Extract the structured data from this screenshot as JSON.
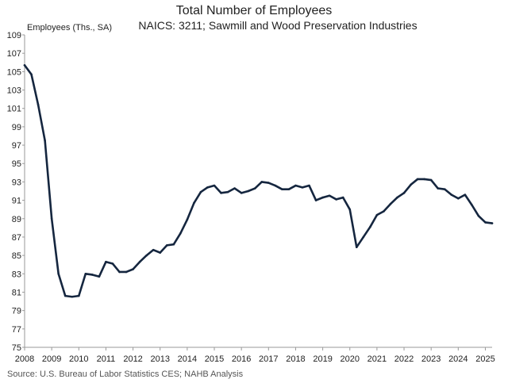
{
  "chart_data": {
    "type": "line",
    "title": "Total Number of Employees",
    "subtitle": "NAICS: 3211; Sawmill and Wood Preservation Industries",
    "ylabel": "Employees (Ths., SA)",
    "xlabel": "",
    "source": "Source: U.S. Bureau of Labor Statistics CES; NAHB Analysis",
    "ylim": [
      75,
      109
    ],
    "xlim": [
      2008,
      2025.25
    ],
    "y_ticks": [
      "75",
      "77",
      "79",
      "81",
      "83",
      "85",
      "87",
      "89",
      "91",
      "93",
      "95",
      "97",
      "99",
      "101",
      "103",
      "105",
      "107",
      "109"
    ],
    "x_ticks": [
      "2008",
      "2009",
      "2010",
      "2011",
      "2012",
      "2013",
      "2014",
      "2015",
      "2016",
      "2017",
      "2018",
      "2019",
      "2020",
      "2021",
      "2022",
      "2023",
      "2024",
      "2025"
    ],
    "grid": false,
    "colors": {
      "line": "#15263f"
    },
    "series": [
      {
        "x": [
          2008.0,
          2008.25,
          2008.5,
          2008.75,
          2009.0,
          2009.25,
          2009.5,
          2009.75,
          2010.0,
          2010.25,
          2010.5,
          2010.75,
          2011.0,
          2011.25,
          2011.5,
          2011.75,
          2012.0,
          2012.25,
          2012.5,
          2012.75,
          2013.0,
          2013.25,
          2013.5,
          2013.75,
          2014.0,
          2014.25,
          2014.5,
          2014.75,
          2015.0,
          2015.25,
          2015.5,
          2015.75,
          2016.0,
          2016.25,
          2016.5,
          2016.75,
          2017.0,
          2017.25,
          2017.5,
          2017.75,
          2018.0,
          2018.25,
          2018.5,
          2018.75,
          2019.0,
          2019.25,
          2019.5,
          2019.75,
          2020.0,
          2020.25,
          2020.5,
          2020.75,
          2021.0,
          2021.25,
          2021.5,
          2021.75,
          2022.0,
          2022.25,
          2022.5,
          2022.75,
          2023.0,
          2023.25,
          2023.5,
          2023.75,
          2024.0,
          2024.25,
          2024.5,
          2024.75,
          2025.0,
          2025.25
        ],
        "y": [
          105.7,
          104.7,
          101.4,
          97.5,
          89.0,
          83.0,
          80.6,
          80.5,
          80.6,
          83.0,
          82.9,
          82.7,
          84.3,
          84.1,
          83.2,
          83.2,
          83.5,
          84.3,
          85.0,
          85.6,
          85.3,
          86.1,
          86.2,
          87.4,
          88.9,
          90.7,
          91.9,
          92.4,
          92.6,
          91.8,
          91.9,
          92.3,
          91.8,
          92.0,
          92.3,
          93.0,
          92.9,
          92.6,
          92.2,
          92.2,
          92.6,
          92.4,
          92.6,
          91.0,
          91.3,
          91.5,
          91.1,
          91.3,
          90.0,
          85.9,
          87.0,
          88.1,
          89.4,
          89.8,
          90.6,
          91.3,
          91.8,
          92.7,
          93.3,
          93.3,
          93.2,
          92.3,
          92.2,
          91.6,
          91.2,
          91.6,
          90.5,
          89.3,
          88.6,
          88.5
        ]
      }
    ]
  }
}
